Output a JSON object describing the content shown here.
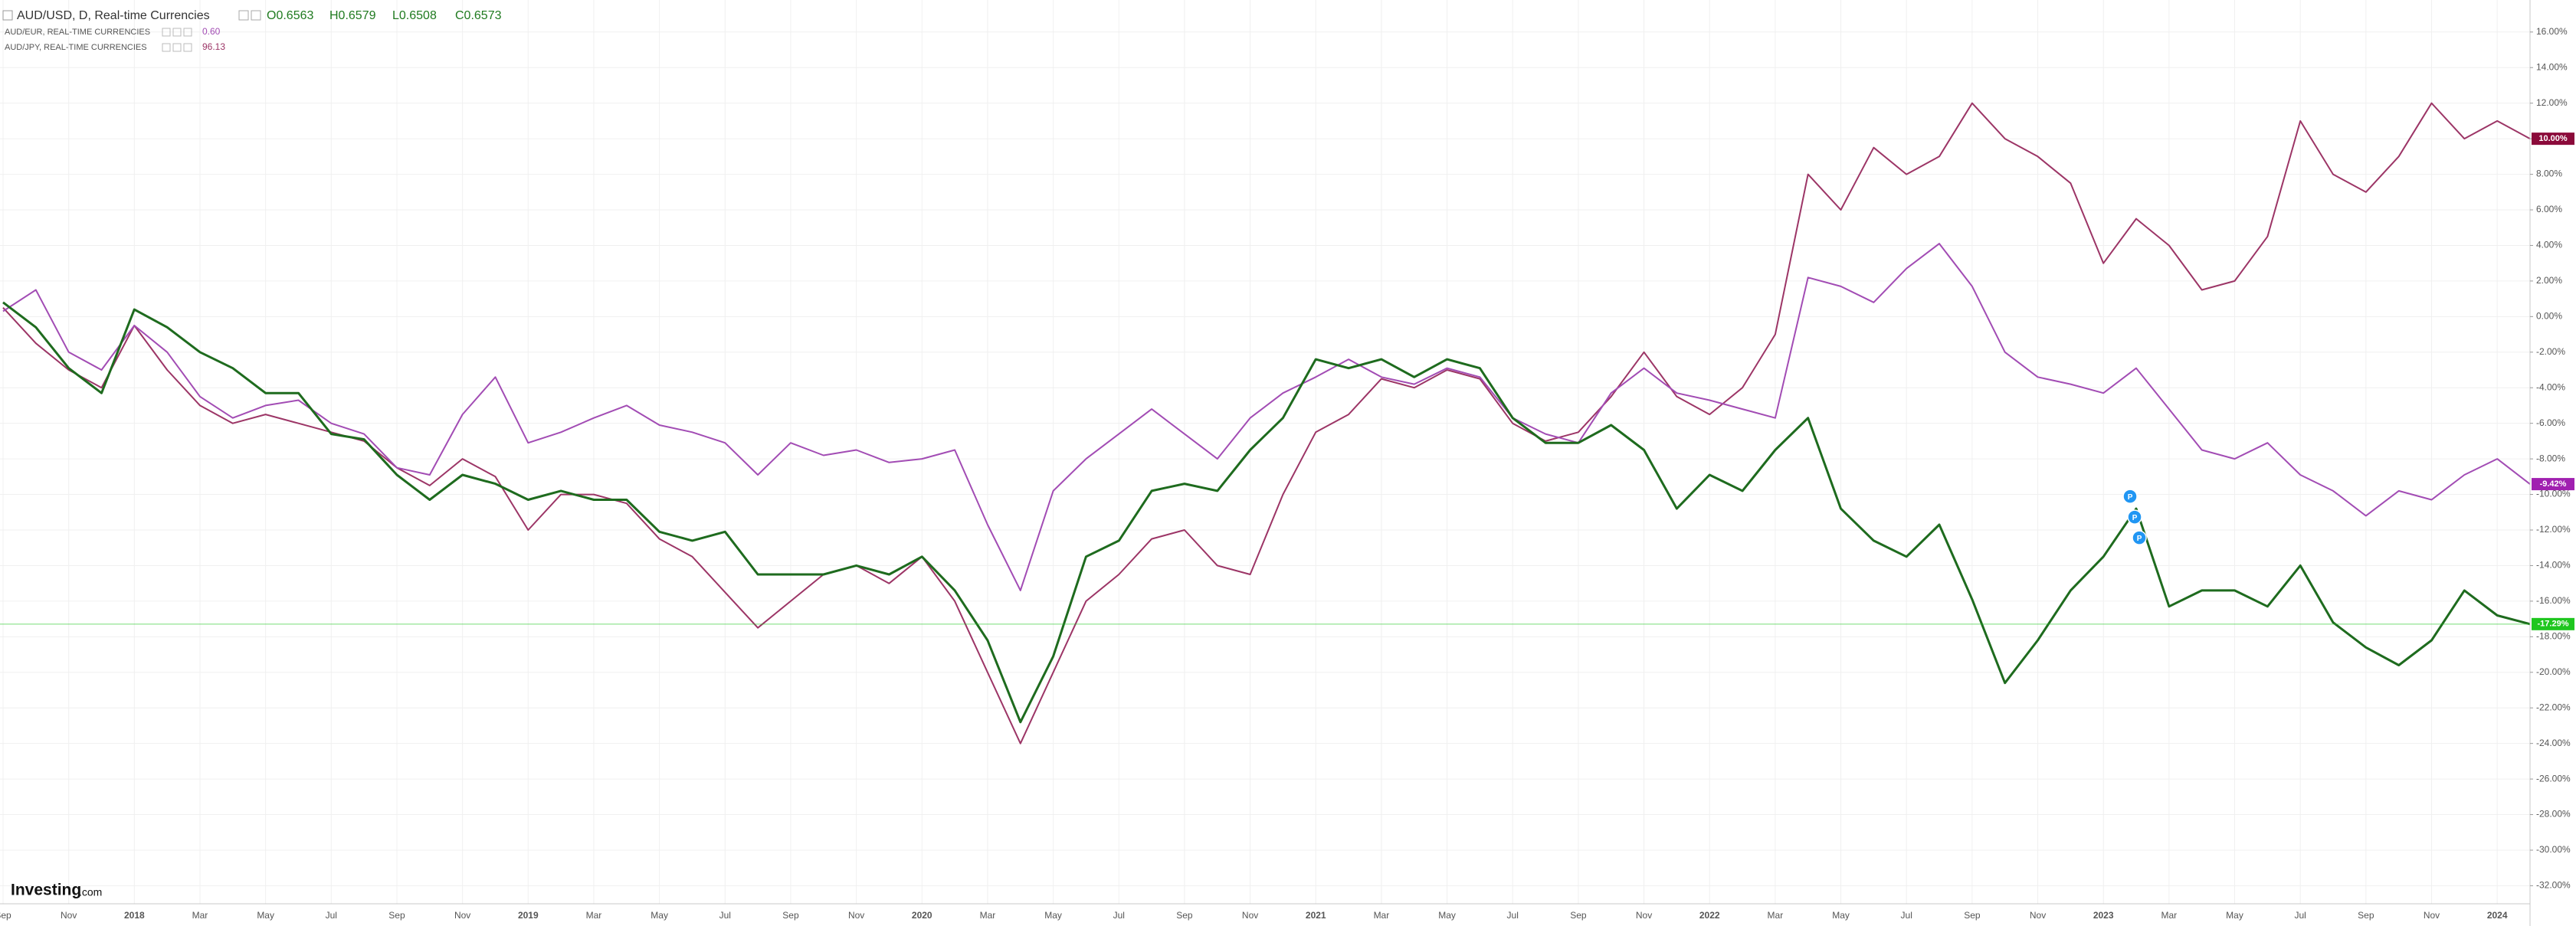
{
  "chart_data": {
    "type": "line",
    "legend": {
      "main": "AUD/USD, D, Real-time Currencies",
      "ohlc": [
        "O0.6563",
        "H0.6579",
        "L0.6508",
        "C0.6573"
      ]
    },
    "branding": [
      "Investing",
      ".com"
    ],
    "categories": [
      "Sep",
      null,
      "Nov",
      null,
      "2018",
      null,
      "Mar",
      null,
      "May",
      null,
      "Jul",
      null,
      "Sep",
      null,
      "Nov",
      null,
      "2019",
      null,
      "Mar",
      null,
      "May",
      null,
      "Jul",
      null,
      "Sep",
      null,
      "Nov",
      null,
      "2020",
      null,
      "Mar",
      null,
      "May",
      null,
      "Jul",
      null,
      "Sep",
      null,
      "Nov",
      null,
      "2021",
      null,
      "Mar",
      null,
      "May",
      null,
      "Jul",
      null,
      "Sep",
      null,
      "Nov",
      null,
      "2022",
      null,
      "Mar",
      null,
      "May",
      null,
      "Jul",
      null,
      "Sep",
      null,
      "Nov",
      null,
      "2023",
      null,
      "Mar",
      null,
      "May",
      null,
      "Jul",
      null,
      "Sep",
      null,
      "Nov",
      null,
      "2024",
      null
    ],
    "series": [
      {
        "name": "AUD/JPY, REAL-TIME CURRENCIES",
        "last": "96.13",
        "color": "#9c3566",
        "badge": "10.00%",
        "values": [
          0.5,
          -1.5,
          -3.0,
          -4.0,
          -0.5,
          -3.0,
          -5.0,
          -6.0,
          -5.5,
          -6.0,
          -6.5,
          -7.0,
          -8.5,
          -9.5,
          -8.0,
          -9.0,
          -12.0,
          -10.0,
          -10.0,
          -10.5,
          -12.5,
          -13.5,
          -15.5,
          -17.5,
          -16.0,
          -14.5,
          -14.0,
          -15.0,
          -13.5,
          -16.0,
          -20.0,
          -24.0,
          -20.0,
          -16.0,
          -14.5,
          -12.5,
          -12.0,
          -14.0,
          -14.5,
          -10.0,
          -6.5,
          -5.5,
          -3.5,
          -4.0,
          -3.0,
          -3.5,
          -6.0,
          -7.0,
          -6.5,
          -4.5,
          -2.0,
          -4.5,
          -5.5,
          -4.0,
          -1.0,
          8.0,
          6.0,
          9.5,
          8.0,
          9.0,
          12.0,
          10.0,
          9.0,
          7.5,
          3.0,
          5.5,
          4.0,
          1.5,
          2.0,
          4.5,
          11.0,
          8.0,
          7.0,
          9.0,
          12.0,
          10.0,
          11.0,
          10.0
        ]
      },
      {
        "name": "AUD/EUR, REAL-TIME CURRENCIES",
        "last": "0.60",
        "color": "#a24cb4",
        "badge": "-9.42%",
        "values": [
          0.3,
          1.5,
          -2.0,
          -3.0,
          -0.5,
          -2.0,
          -4.5,
          -5.7,
          -5.0,
          -4.7,
          -6.0,
          -6.6,
          -8.5,
          -8.9,
          -5.5,
          -3.4,
          -7.1,
          -6.5,
          -5.7,
          -5.0,
          -6.1,
          -6.5,
          -7.1,
          -8.9,
          -7.1,
          -7.8,
          -7.5,
          -8.2,
          -8.0,
          -7.5,
          -11.7,
          -15.4,
          -9.8,
          -8.0,
          -6.6,
          -5.2,
          -6.6,
          -8.0,
          -5.7,
          -4.3,
          -3.4,
          -2.4,
          -3.4,
          -3.8,
          -2.9,
          -3.4,
          -5.7,
          -6.6,
          -7.1,
          -4.3,
          -2.9,
          -4.3,
          -4.7,
          -5.2,
          -5.7,
          2.2,
          1.7,
          0.8,
          2.7,
          4.1,
          1.7,
          -2.0,
          -3.4,
          -3.8,
          -4.3,
          -2.9,
          -5.2,
          -7.5,
          -8.0,
          -7.1,
          -8.9,
          -9.8,
          -11.2,
          -9.8,
          -10.3,
          -8.9,
          -8.0,
          -9.42
        ]
      },
      {
        "name": "AUD/USD",
        "color": "#1e6b1e",
        "badge": "-17.29%",
        "values": [
          0.8,
          -0.6,
          -2.9,
          -4.3,
          0.4,
          -0.6,
          -2.0,
          -2.9,
          -4.3,
          -4.3,
          -6.6,
          -6.9,
          -8.9,
          -10.3,
          -8.9,
          -9.4,
          -10.3,
          -9.8,
          -10.3,
          -10.3,
          -12.1,
          -12.6,
          -12.1,
          -14.5,
          -14.5,
          -14.5,
          -14.0,
          -14.5,
          -13.5,
          -15.4,
          -18.2,
          -22.8,
          -19.1,
          -13.5,
          -12.6,
          -9.8,
          -9.4,
          -9.8,
          -7.5,
          -5.7,
          -2.4,
          -2.9,
          -2.4,
          -3.4,
          -2.4,
          -2.9,
          -5.7,
          -7.1,
          -7.1,
          -6.1,
          -7.5,
          -10.8,
          -8.9,
          -9.8,
          -7.5,
          -5.7,
          -10.8,
          -12.6,
          -13.5,
          -11.7,
          -15.9,
          -20.6,
          -18.2,
          -15.4,
          -13.5,
          -10.8,
          -16.3,
          -15.4,
          -15.4,
          -16.3,
          -14.0,
          -17.2,
          -18.6,
          -19.6,
          -18.2,
          -15.4,
          -16.8,
          -17.29
        ]
      }
    ],
    "badge_colors": [
      "#8b0a3a",
      "#a020b0",
      "#1fc61f"
    ],
    "annotations": [
      "P",
      "P",
      "P"
    ],
    "annotation_color": "#2196f3",
    "ylim": [
      -32.8,
      17.8
    ],
    "yticks": [
      {
        "value": 16,
        "label": "16.00%"
      },
      {
        "value": 14,
        "label": "14.00%"
      },
      {
        "value": 12,
        "label": "12.00%"
      },
      {
        "value": 10,
        "label": "10.00%"
      },
      {
        "value": 8,
        "label": "8.00%"
      },
      {
        "value": 6,
        "label": "6.00%"
      },
      {
        "value": 4,
        "label": "4.00%"
      },
      {
        "value": 2,
        "label": "2.00%"
      },
      {
        "value": 0,
        "label": "0.00%"
      },
      {
        "value": -2,
        "label": "-2.00%"
      },
      {
        "value": -4,
        "label": "-4.00%"
      },
      {
        "value": -6,
        "label": "-6.00%"
      },
      {
        "value": -8,
        "label": "-8.00%"
      },
      {
        "value": -10,
        "label": "-10.00%"
      },
      {
        "value": -12,
        "label": "-12.00%"
      },
      {
        "value": -14,
        "label": "-14.00%"
      },
      {
        "value": -16,
        "label": "-16.00%"
      },
      {
        "value": -18,
        "label": "-18.00%"
      },
      {
        "value": -20,
        "label": "-20.00%"
      },
      {
        "value": -22,
        "label": "-22.00%"
      },
      {
        "value": -24,
        "label": "-24.00%"
      },
      {
        "value": -26,
        "label": "-26.00%"
      },
      {
        "value": -28,
        "label": "-28.00%"
      },
      {
        "value": -30,
        "label": "-30.00%"
      },
      {
        "value": -32,
        "label": "-32.00%"
      }
    ],
    "grid": true
  }
}
